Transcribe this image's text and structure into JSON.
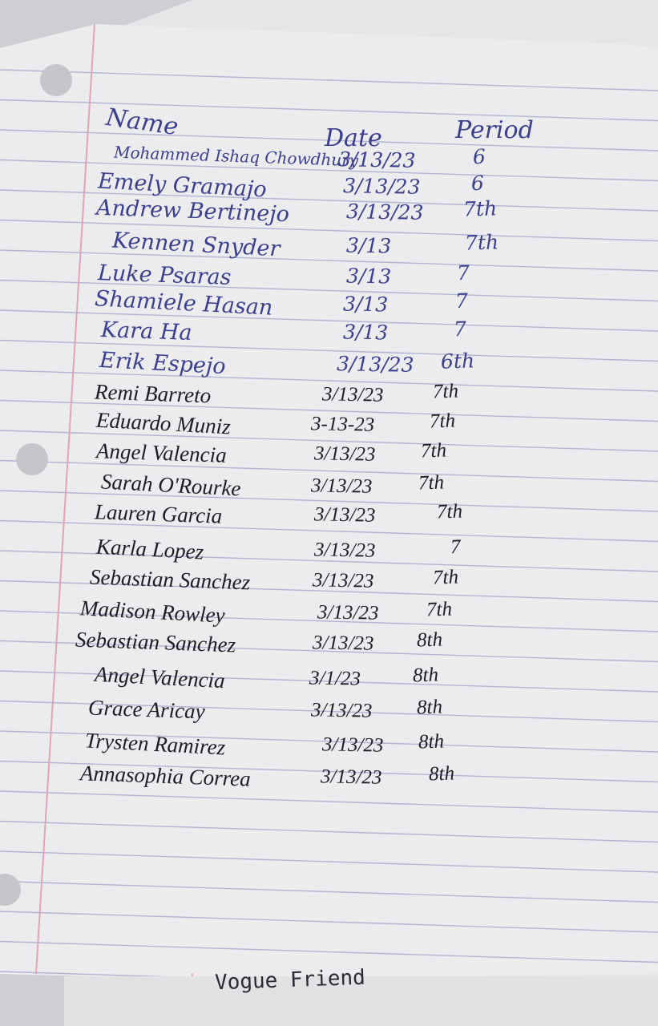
{
  "header": {
    "name": "Name",
    "date": "Date",
    "period": "Period"
  },
  "rows": [
    {
      "name": "Mohammed Ishaq Chowdhury",
      "date": "3/13/23",
      "period": "6"
    },
    {
      "name": "Emely Gramajo",
      "date": "3/13/23",
      "period": "6"
    },
    {
      "name": "Andrew Bertinejo",
      "date": "3/13/23",
      "period": "7th"
    },
    {
      "name": "Kennen Snyder",
      "date": "3/13",
      "period": "7th"
    },
    {
      "name": "Luke Psaras",
      "date": "3/13",
      "period": "7"
    },
    {
      "name": "Shamiele Hasan",
      "date": "3/13",
      "period": "7"
    },
    {
      "name": "Kara Ha",
      "date": "3/13",
      "period": "7"
    },
    {
      "name": "Erik Espejo",
      "date": "3/13/23",
      "period": "6th"
    },
    {
      "name": "Remi Barreto",
      "date": "3/13/23",
      "period": "7th"
    },
    {
      "name": "Eduardo Muniz",
      "date": "3-13-23",
      "period": "7th"
    },
    {
      "name": "Angel Valencia",
      "date": "3/13/23",
      "period": "7th"
    },
    {
      "name": "Sarah O'Rourke",
      "date": "3/13/23",
      "period": "7th"
    },
    {
      "name": "Lauren Garcia",
      "date": "3/13/23",
      "period": "7th"
    },
    {
      "name": "Karla Lopez",
      "date": "3/13/23",
      "period": "7"
    },
    {
      "name": "Sebastian Sanchez",
      "date": "3/13/23",
      "period": "7th"
    },
    {
      "name": "Madison Rowley",
      "date": "3/13/23",
      "period": "7th"
    },
    {
      "name": "Sebastian Sanchez",
      "date": "3/13/23",
      "period": "8th"
    },
    {
      "name": "Angel Valencia",
      "date": "3/1/23",
      "period": "8th"
    },
    {
      "name": "Grace Aricay",
      "date": "3/13/23",
      "period": "8th"
    },
    {
      "name": "Trysten Ramirez",
      "date": "3/13/23",
      "period": "8th"
    },
    {
      "name": "Annasophia Correa",
      "date": "3/13/23",
      "period": "8th"
    }
  ],
  "footer": "Vogue Friend"
}
